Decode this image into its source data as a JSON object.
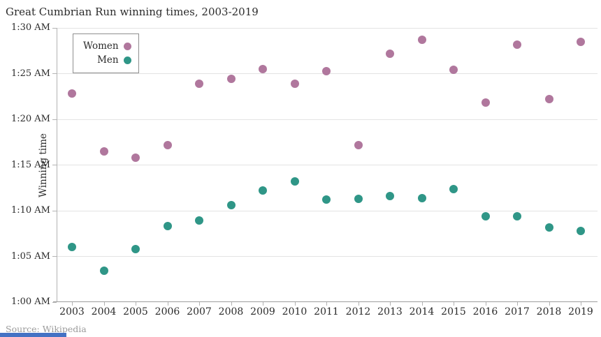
{
  "title": "Great Cumbrian Run winning times, 2003-2019",
  "source_note": "Source: Wikipedia",
  "legend": {
    "items": [
      {
        "label": "Women",
        "color": "#b0779d"
      },
      {
        "label": "Men",
        "color": "#2f9687"
      }
    ]
  },
  "accent_bar_color": "#4472c4",
  "chart_data": {
    "type": "scatter",
    "title": "Great Cumbrian Run winning times, 2003-2019",
    "xlabel": "",
    "ylabel": "Winning time",
    "x": [
      2003,
      2004,
      2005,
      2006,
      2007,
      2008,
      2009,
      2010,
      2011,
      2012,
      2013,
      2014,
      2015,
      2016,
      2017,
      2018,
      2019
    ],
    "series": [
      {
        "name": "Women",
        "color": "#b0779d",
        "units": "minutes after 1:00 AM",
        "values": [
          22.8,
          16.5,
          15.8,
          17.2,
          23.9,
          24.4,
          25.5,
          23.9,
          25.3,
          17.2,
          27.2,
          28.7,
          25.4,
          21.8,
          28.2,
          22.2,
          28.5
        ]
      },
      {
        "name": "Men",
        "color": "#2f9687",
        "units": "minutes after 1:00 AM",
        "values": [
          6.0,
          3.4,
          5.8,
          8.3,
          8.9,
          10.6,
          12.2,
          13.2,
          11.2,
          11.3,
          11.6,
          11.4,
          12.4,
          9.4,
          9.4,
          8.2,
          7.8
        ]
      }
    ],
    "y_ticks": [
      "1:00 AM",
      "1:05 AM",
      "1:10 AM",
      "1:15 AM",
      "1:20 AM",
      "1:25 AM",
      "1:30 AM"
    ],
    "ylim_minutes_after_1am": [
      0,
      30
    ],
    "grid": "horizontal",
    "legend_position": "inside top-left"
  }
}
